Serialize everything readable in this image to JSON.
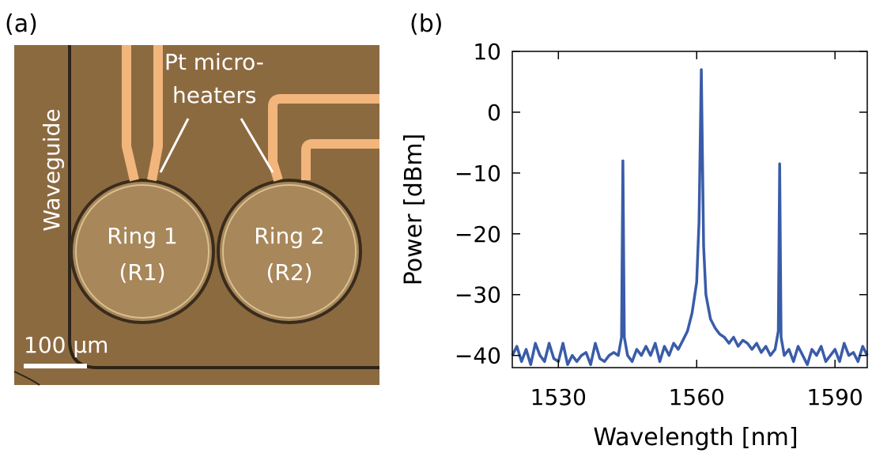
{
  "panel_a": {
    "label": "(a)",
    "waveguide": "Waveguide",
    "heater_label": [
      "Pt micro-",
      "heaters"
    ],
    "rings": [
      {
        "name": "Ring 1",
        "short": "(R1)"
      },
      {
        "name": "Ring 2",
        "short": "(R2)"
      }
    ],
    "scale_bar": "100 µm"
  },
  "chart_data": {
    "type": "line",
    "panel_label": "(b)",
    "x_label": "Wavelength [nm]",
    "y_label": "Power [dBm]",
    "xlim": [
      1520,
      1597
    ],
    "xticks": [
      1530,
      1560,
      1590
    ],
    "ylim": [
      -42,
      10
    ],
    "yticks": [
      10,
      0,
      {
        "value": -10,
        "label": "−10"
      },
      {
        "value": -20,
        "label": "−20"
      },
      {
        "value": -30,
        "label": "−30"
      },
      {
        "value": -40,
        "label": "−40"
      }
    ],
    "series": [
      {
        "color": "#3a5ca8",
        "x": [
          1520,
          1521,
          1522,
          1523,
          1524,
          1525,
          1526,
          1527,
          1528,
          1529,
          1530,
          1531,
          1532,
          1533,
          1534,
          1535,
          1536,
          1537,
          1538,
          1539,
          1540,
          1541,
          1542,
          1543,
          1543.7,
          1544,
          1544.3,
          1545,
          1546,
          1547,
          1548,
          1549,
          1550,
          1551,
          1552,
          1553,
          1554,
          1555,
          1556,
          1557,
          1558,
          1559,
          1560,
          1560.5,
          1561,
          1561.5,
          1562,
          1563,
          1564,
          1565,
          1566,
          1567,
          1568,
          1569,
          1570,
          1571,
          1572,
          1573,
          1574,
          1575,
          1576,
          1577,
          1577.7,
          1578,
          1578.3,
          1579,
          1580,
          1581,
          1582,
          1583,
          1584,
          1585,
          1586,
          1587,
          1588,
          1589,
          1590,
          1591,
          1592,
          1593,
          1594,
          1595,
          1596,
          1597
        ],
        "values": [
          -40,
          -38.5,
          -41,
          -39,
          -41.5,
          -38,
          -40,
          -41,
          -38,
          -40.5,
          -41,
          -38,
          -41.5,
          -40,
          -41,
          -40,
          -39.5,
          -41.5,
          -38,
          -40.5,
          -41,
          -40,
          -39.5,
          -40,
          -37,
          -8,
          -37,
          -40,
          -41,
          -39,
          -40,
          -38.5,
          -40,
          -38,
          -41,
          -38.5,
          -40,
          -38,
          -39,
          -37.5,
          -36,
          -33,
          -28,
          -18,
          7,
          -22,
          -30,
          -34,
          -35.5,
          -36.5,
          -37,
          -38,
          -37,
          -38.5,
          -37.5,
          -38,
          -39,
          -38,
          -39.5,
          -38.5,
          -40,
          -39,
          -36,
          -8.5,
          -37,
          -40,
          -39,
          -41,
          -38.5,
          -40,
          -41.5,
          -39,
          -40,
          -38.5,
          -41,
          -40,
          -39,
          -41,
          -38,
          -40,
          -39.5,
          -41,
          -38.5,
          -40
        ]
      }
    ]
  }
}
